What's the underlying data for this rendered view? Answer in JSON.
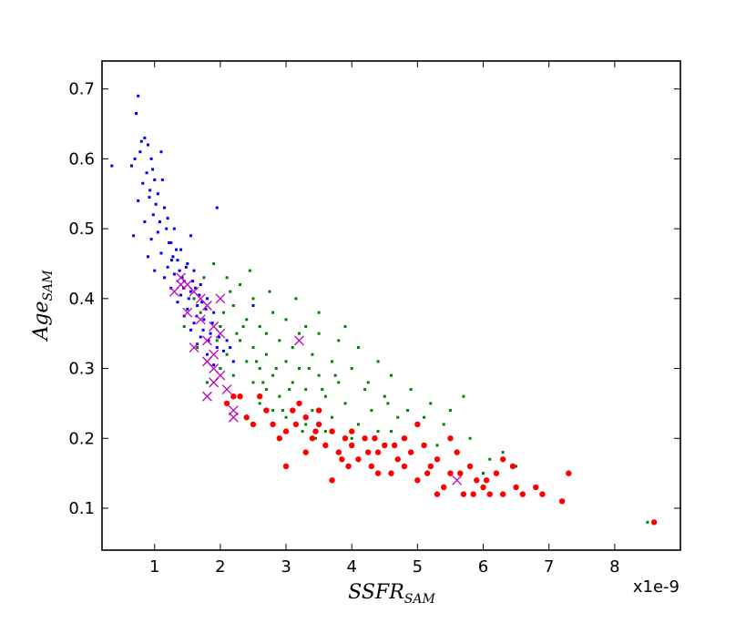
{
  "chart_data": {
    "type": "scatter",
    "title": "",
    "xlabel": {
      "main": "SSFR",
      "sub": "SAM"
    },
    "ylabel": {
      "main": "Age",
      "sub": "SAM"
    },
    "x_offset_text": "x1e-9",
    "xlim": [
      0.2,
      9.0
    ],
    "ylim": [
      0.04,
      0.74
    ],
    "xticks": [
      1,
      2,
      3,
      4,
      5,
      6,
      7,
      8
    ],
    "xtick_labels": [
      "1",
      "2",
      "3",
      "4",
      "5",
      "6",
      "7",
      "8"
    ],
    "yticks": [
      0.1,
      0.2,
      0.3,
      0.4,
      0.5,
      0.6,
      0.7
    ],
    "ytick_labels": [
      "0.1",
      "0.2",
      "0.3",
      "0.4",
      "0.5",
      "0.6",
      "0.7"
    ],
    "grid": false,
    "legend": "none",
    "colors": {
      "blue": "#0000ff",
      "green": "#008000",
      "red": "#ff0000",
      "magenta": "#bf00bf",
      "axis": "#000000"
    },
    "series": [
      {
        "marker": "square-small",
        "color": "#0000ff",
        "points": [
          [
            0.75,
            0.69
          ],
          [
            0.72,
            0.665
          ],
          [
            0.85,
            0.63
          ],
          [
            0.8,
            0.625
          ],
          [
            0.9,
            0.62
          ],
          [
            0.78,
            0.61
          ],
          [
            0.95,
            0.6
          ],
          [
            1.1,
            0.61
          ],
          [
            0.7,
            0.6
          ],
          [
            0.65,
            0.59
          ],
          [
            0.35,
            0.59
          ],
          [
            0.88,
            0.58
          ],
          [
            1.0,
            0.57
          ],
          [
            0.82,
            0.565
          ],
          [
            1.05,
            0.55
          ],
          [
            0.92,
            0.545
          ],
          [
            0.75,
            0.54
          ],
          [
            1.15,
            0.53
          ],
          [
            0.98,
            0.52
          ],
          [
            1.2,
            0.515
          ],
          [
            0.85,
            0.51
          ],
          [
            1.3,
            0.5
          ],
          [
            1.05,
            0.495
          ],
          [
            0.68,
            0.49
          ],
          [
            0.95,
            0.485
          ],
          [
            1.25,
            0.48
          ],
          [
            1.4,
            0.47
          ],
          [
            1.1,
            0.465
          ],
          [
            0.9,
            0.46
          ],
          [
            1.35,
            0.455
          ],
          [
            1.5,
            0.45
          ],
          [
            1.2,
            0.445
          ],
          [
            1.0,
            0.44
          ],
          [
            1.6,
            0.44
          ],
          [
            1.3,
            0.435
          ],
          [
            1.15,
            0.43
          ],
          [
            1.45,
            0.425
          ],
          [
            1.7,
            0.42
          ],
          [
            1.25,
            0.415
          ],
          [
            1.55,
            0.41
          ],
          [
            1.4,
            0.405
          ],
          [
            1.8,
            0.4
          ],
          [
            1.35,
            0.395
          ],
          [
            1.65,
            0.39
          ],
          [
            1.5,
            0.385
          ],
          [
            1.9,
            0.38
          ],
          [
            1.45,
            0.375
          ],
          [
            1.75,
            0.37
          ],
          [
            1.6,
            0.365
          ],
          [
            2.0,
            0.36
          ],
          [
            1.55,
            0.355
          ],
          [
            1.85,
            0.35
          ],
          [
            1.7,
            0.345
          ],
          [
            2.1,
            0.34
          ],
          [
            1.65,
            0.335
          ],
          [
            1.95,
            0.33
          ],
          [
            2.05,
            0.325
          ],
          [
            1.8,
            0.32
          ],
          [
            2.2,
            0.31
          ],
          [
            1.9,
            0.305
          ],
          [
            2.0,
            0.3
          ],
          [
            2.5,
            0.39
          ],
          [
            1.95,
            0.53
          ],
          [
            1.55,
            0.49
          ],
          [
            1.12,
            0.57
          ],
          [
            0.97,
            0.585
          ],
          [
            1.28,
            0.46
          ],
          [
            1.42,
            0.43
          ],
          [
            1.22,
            0.48
          ],
          [
            1.62,
            0.415
          ],
          [
            1.72,
            0.395
          ],
          [
            1.08,
            0.51
          ],
          [
            1.18,
            0.5
          ],
          [
            1.33,
            0.47
          ],
          [
            1.48,
            0.445
          ],
          [
            1.58,
            0.425
          ],
          [
            1.68,
            0.405
          ],
          [
            1.78,
            0.385
          ],
          [
            1.88,
            0.365
          ],
          [
            1.98,
            0.345
          ],
          [
            1.02,
            0.535
          ],
          [
            0.93,
            0.555
          ],
          [
            1.38,
            0.44
          ],
          [
            1.52,
            0.4
          ],
          [
            1.82,
            0.34
          ],
          [
            2.15,
            0.33
          ],
          [
            1.26,
            0.455
          ],
          [
            1.44,
            0.415
          ],
          [
            1.64,
            0.375
          ],
          [
            1.74,
            0.355
          ]
        ]
      },
      {
        "marker": "square-small",
        "color": "#008000",
        "points": [
          [
            1.9,
            0.45
          ],
          [
            2.1,
            0.43
          ],
          [
            2.3,
            0.42
          ],
          [
            2.5,
            0.4
          ],
          [
            2.8,
            0.38
          ],
          [
            3.0,
            0.37
          ],
          [
            3.3,
            0.36
          ],
          [
            3.5,
            0.35
          ],
          [
            2.2,
            0.39
          ],
          [
            2.4,
            0.37
          ],
          [
            2.6,
            0.36
          ],
          [
            2.9,
            0.34
          ],
          [
            3.1,
            0.33
          ],
          [
            3.4,
            0.32
          ],
          [
            3.7,
            0.31
          ],
          [
            4.0,
            0.3
          ],
          [
            2.0,
            0.36
          ],
          [
            2.3,
            0.34
          ],
          [
            2.5,
            0.33
          ],
          [
            2.7,
            0.32
          ],
          [
            3.0,
            0.31
          ],
          [
            3.2,
            0.3
          ],
          [
            3.5,
            0.29
          ],
          [
            3.8,
            0.28
          ],
          [
            4.2,
            0.27
          ],
          [
            4.5,
            0.26
          ],
          [
            2.1,
            0.32
          ],
          [
            2.4,
            0.31
          ],
          [
            2.6,
            0.3
          ],
          [
            2.8,
            0.29
          ],
          [
            3.1,
            0.28
          ],
          [
            3.3,
            0.27
          ],
          [
            3.6,
            0.26
          ],
          [
            3.9,
            0.25
          ],
          [
            4.3,
            0.24
          ],
          [
            4.7,
            0.23
          ],
          [
            5.0,
            0.22
          ],
          [
            2.2,
            0.29
          ],
          [
            2.5,
            0.28
          ],
          [
            2.7,
            0.27
          ],
          [
            2.9,
            0.26
          ],
          [
            3.2,
            0.25
          ],
          [
            3.4,
            0.24
          ],
          [
            3.7,
            0.23
          ],
          [
            4.1,
            0.22
          ],
          [
            4.4,
            0.21
          ],
          [
            4.8,
            0.2
          ],
          [
            5.3,
            0.19
          ],
          [
            5.6,
            0.18
          ],
          [
            6.1,
            0.17
          ],
          [
            6.5,
            0.16
          ],
          [
            2.3,
            0.26
          ],
          [
            2.6,
            0.25
          ],
          [
            2.8,
            0.24
          ],
          [
            3.0,
            0.23
          ],
          [
            3.3,
            0.22
          ],
          [
            3.6,
            0.21
          ],
          [
            4.0,
            0.2
          ],
          [
            1.8,
            0.28
          ],
          [
            2.0,
            0.3
          ],
          [
            1.95,
            0.34
          ],
          [
            1.7,
            0.38
          ],
          [
            1.6,
            0.4
          ],
          [
            2.15,
            0.41
          ],
          [
            2.45,
            0.44
          ],
          [
            2.75,
            0.41
          ],
          [
            3.15,
            0.4
          ],
          [
            3.5,
            0.38
          ],
          [
            3.8,
            0.34
          ],
          [
            4.1,
            0.33
          ],
          [
            4.4,
            0.31
          ],
          [
            4.6,
            0.29
          ],
          [
            4.9,
            0.27
          ],
          [
            5.2,
            0.25
          ],
          [
            5.5,
            0.24
          ],
          [
            5.7,
            0.26
          ],
          [
            5.4,
            0.22
          ],
          [
            4.6,
            0.21
          ],
          [
            3.9,
            0.36
          ],
          [
            3.2,
            0.35
          ],
          [
            2.7,
            0.35
          ],
          [
            2.35,
            0.36
          ],
          [
            2.55,
            0.31
          ],
          [
            2.85,
            0.3
          ],
          [
            3.05,
            0.27
          ],
          [
            3.35,
            0.3
          ],
          [
            3.55,
            0.27
          ],
          [
            3.75,
            0.29
          ],
          [
            4.25,
            0.28
          ],
          [
            4.55,
            0.25
          ],
          [
            4.85,
            0.24
          ],
          [
            5.1,
            0.23
          ],
          [
            1.75,
            0.43
          ],
          [
            2.05,
            0.38
          ],
          [
            2.25,
            0.35
          ],
          [
            2.65,
            0.28
          ],
          [
            2.95,
            0.24
          ],
          [
            3.25,
            0.21
          ],
          [
            3.45,
            0.2
          ],
          [
            8.5,
            0.08
          ],
          [
            1.45,
            0.36
          ],
          [
            1.65,
            0.33
          ],
          [
            6.0,
            0.15
          ],
          [
            5.8,
            0.2
          ],
          [
            6.3,
            0.18
          ]
        ]
      },
      {
        "marker": "circle",
        "color": "#ff0000",
        "points": [
          [
            2.1,
            0.25
          ],
          [
            2.3,
            0.26
          ],
          [
            2.4,
            0.23
          ],
          [
            2.7,
            0.24
          ],
          [
            2.8,
            0.22
          ],
          [
            3.0,
            0.21
          ],
          [
            3.1,
            0.24
          ],
          [
            3.3,
            0.23
          ],
          [
            3.4,
            0.2
          ],
          [
            3.5,
            0.22
          ],
          [
            3.6,
            0.19
          ],
          [
            3.7,
            0.21
          ],
          [
            3.8,
            0.18
          ],
          [
            3.9,
            0.2
          ],
          [
            4.0,
            0.19
          ],
          [
            4.1,
            0.17
          ],
          [
            4.2,
            0.2
          ],
          [
            4.3,
            0.16
          ],
          [
            4.4,
            0.18
          ],
          [
            4.5,
            0.19
          ],
          [
            4.6,
            0.15
          ],
          [
            4.7,
            0.17
          ],
          [
            4.8,
            0.2
          ],
          [
            4.9,
            0.18
          ],
          [
            5.0,
            0.14
          ],
          [
            5.1,
            0.19
          ],
          [
            5.2,
            0.16
          ],
          [
            5.3,
            0.17
          ],
          [
            5.4,
            0.13
          ],
          [
            5.5,
            0.15
          ],
          [
            5.6,
            0.18
          ],
          [
            5.7,
            0.12
          ],
          [
            5.8,
            0.16
          ],
          [
            5.9,
            0.14
          ],
          [
            6.0,
            0.13
          ],
          [
            6.1,
            0.12
          ],
          [
            6.2,
            0.15
          ],
          [
            6.3,
            0.17
          ],
          [
            6.5,
            0.13
          ],
          [
            6.6,
            0.12
          ],
          [
            6.8,
            0.13
          ],
          [
            6.9,
            0.12
          ],
          [
            7.2,
            0.11
          ],
          [
            7.3,
            0.15
          ],
          [
            8.6,
            0.08
          ],
          [
            3.0,
            0.16
          ],
          [
            3.2,
            0.25
          ],
          [
            3.5,
            0.24
          ],
          [
            2.9,
            0.2
          ],
          [
            3.3,
            0.18
          ],
          [
            3.7,
            0.14
          ],
          [
            4.0,
            0.21
          ],
          [
            4.4,
            0.15
          ],
          [
            5.0,
            0.22
          ],
          [
            5.5,
            0.2
          ],
          [
            6.3,
            0.12
          ],
          [
            5.3,
            0.12
          ],
          [
            4.8,
            0.16
          ],
          [
            2.5,
            0.22
          ],
          [
            3.15,
            0.22
          ],
          [
            3.45,
            0.21
          ],
          [
            3.85,
            0.17
          ],
          [
            4.25,
            0.18
          ],
          [
            4.65,
            0.19
          ],
          [
            5.15,
            0.15
          ],
          [
            5.65,
            0.15
          ],
          [
            6.05,
            0.14
          ],
          [
            6.45,
            0.16
          ],
          [
            5.85,
            0.12
          ],
          [
            4.35,
            0.2
          ],
          [
            3.95,
            0.16
          ],
          [
            2.2,
            0.26
          ],
          [
            2.6,
            0.26
          ]
        ]
      },
      {
        "marker": "x",
        "color": "#bf00bf",
        "points": [
          [
            1.3,
            0.41
          ],
          [
            1.4,
            0.42
          ],
          [
            1.5,
            0.42
          ],
          [
            1.6,
            0.41
          ],
          [
            1.7,
            0.4
          ],
          [
            1.8,
            0.39
          ],
          [
            1.5,
            0.38
          ],
          [
            1.7,
            0.37
          ],
          [
            1.9,
            0.36
          ],
          [
            2.0,
            0.35
          ],
          [
            1.8,
            0.34
          ],
          [
            1.6,
            0.33
          ],
          [
            1.9,
            0.32
          ],
          [
            1.8,
            0.31
          ],
          [
            1.9,
            0.3
          ],
          [
            2.0,
            0.29
          ],
          [
            1.9,
            0.28
          ],
          [
            2.1,
            0.27
          ],
          [
            1.8,
            0.26
          ],
          [
            2.2,
            0.24
          ],
          [
            2.2,
            0.23
          ],
          [
            3.2,
            0.34
          ],
          [
            5.6,
            0.14
          ],
          [
            2.0,
            0.4
          ],
          [
            1.4,
            0.43
          ]
        ]
      }
    ]
  }
}
